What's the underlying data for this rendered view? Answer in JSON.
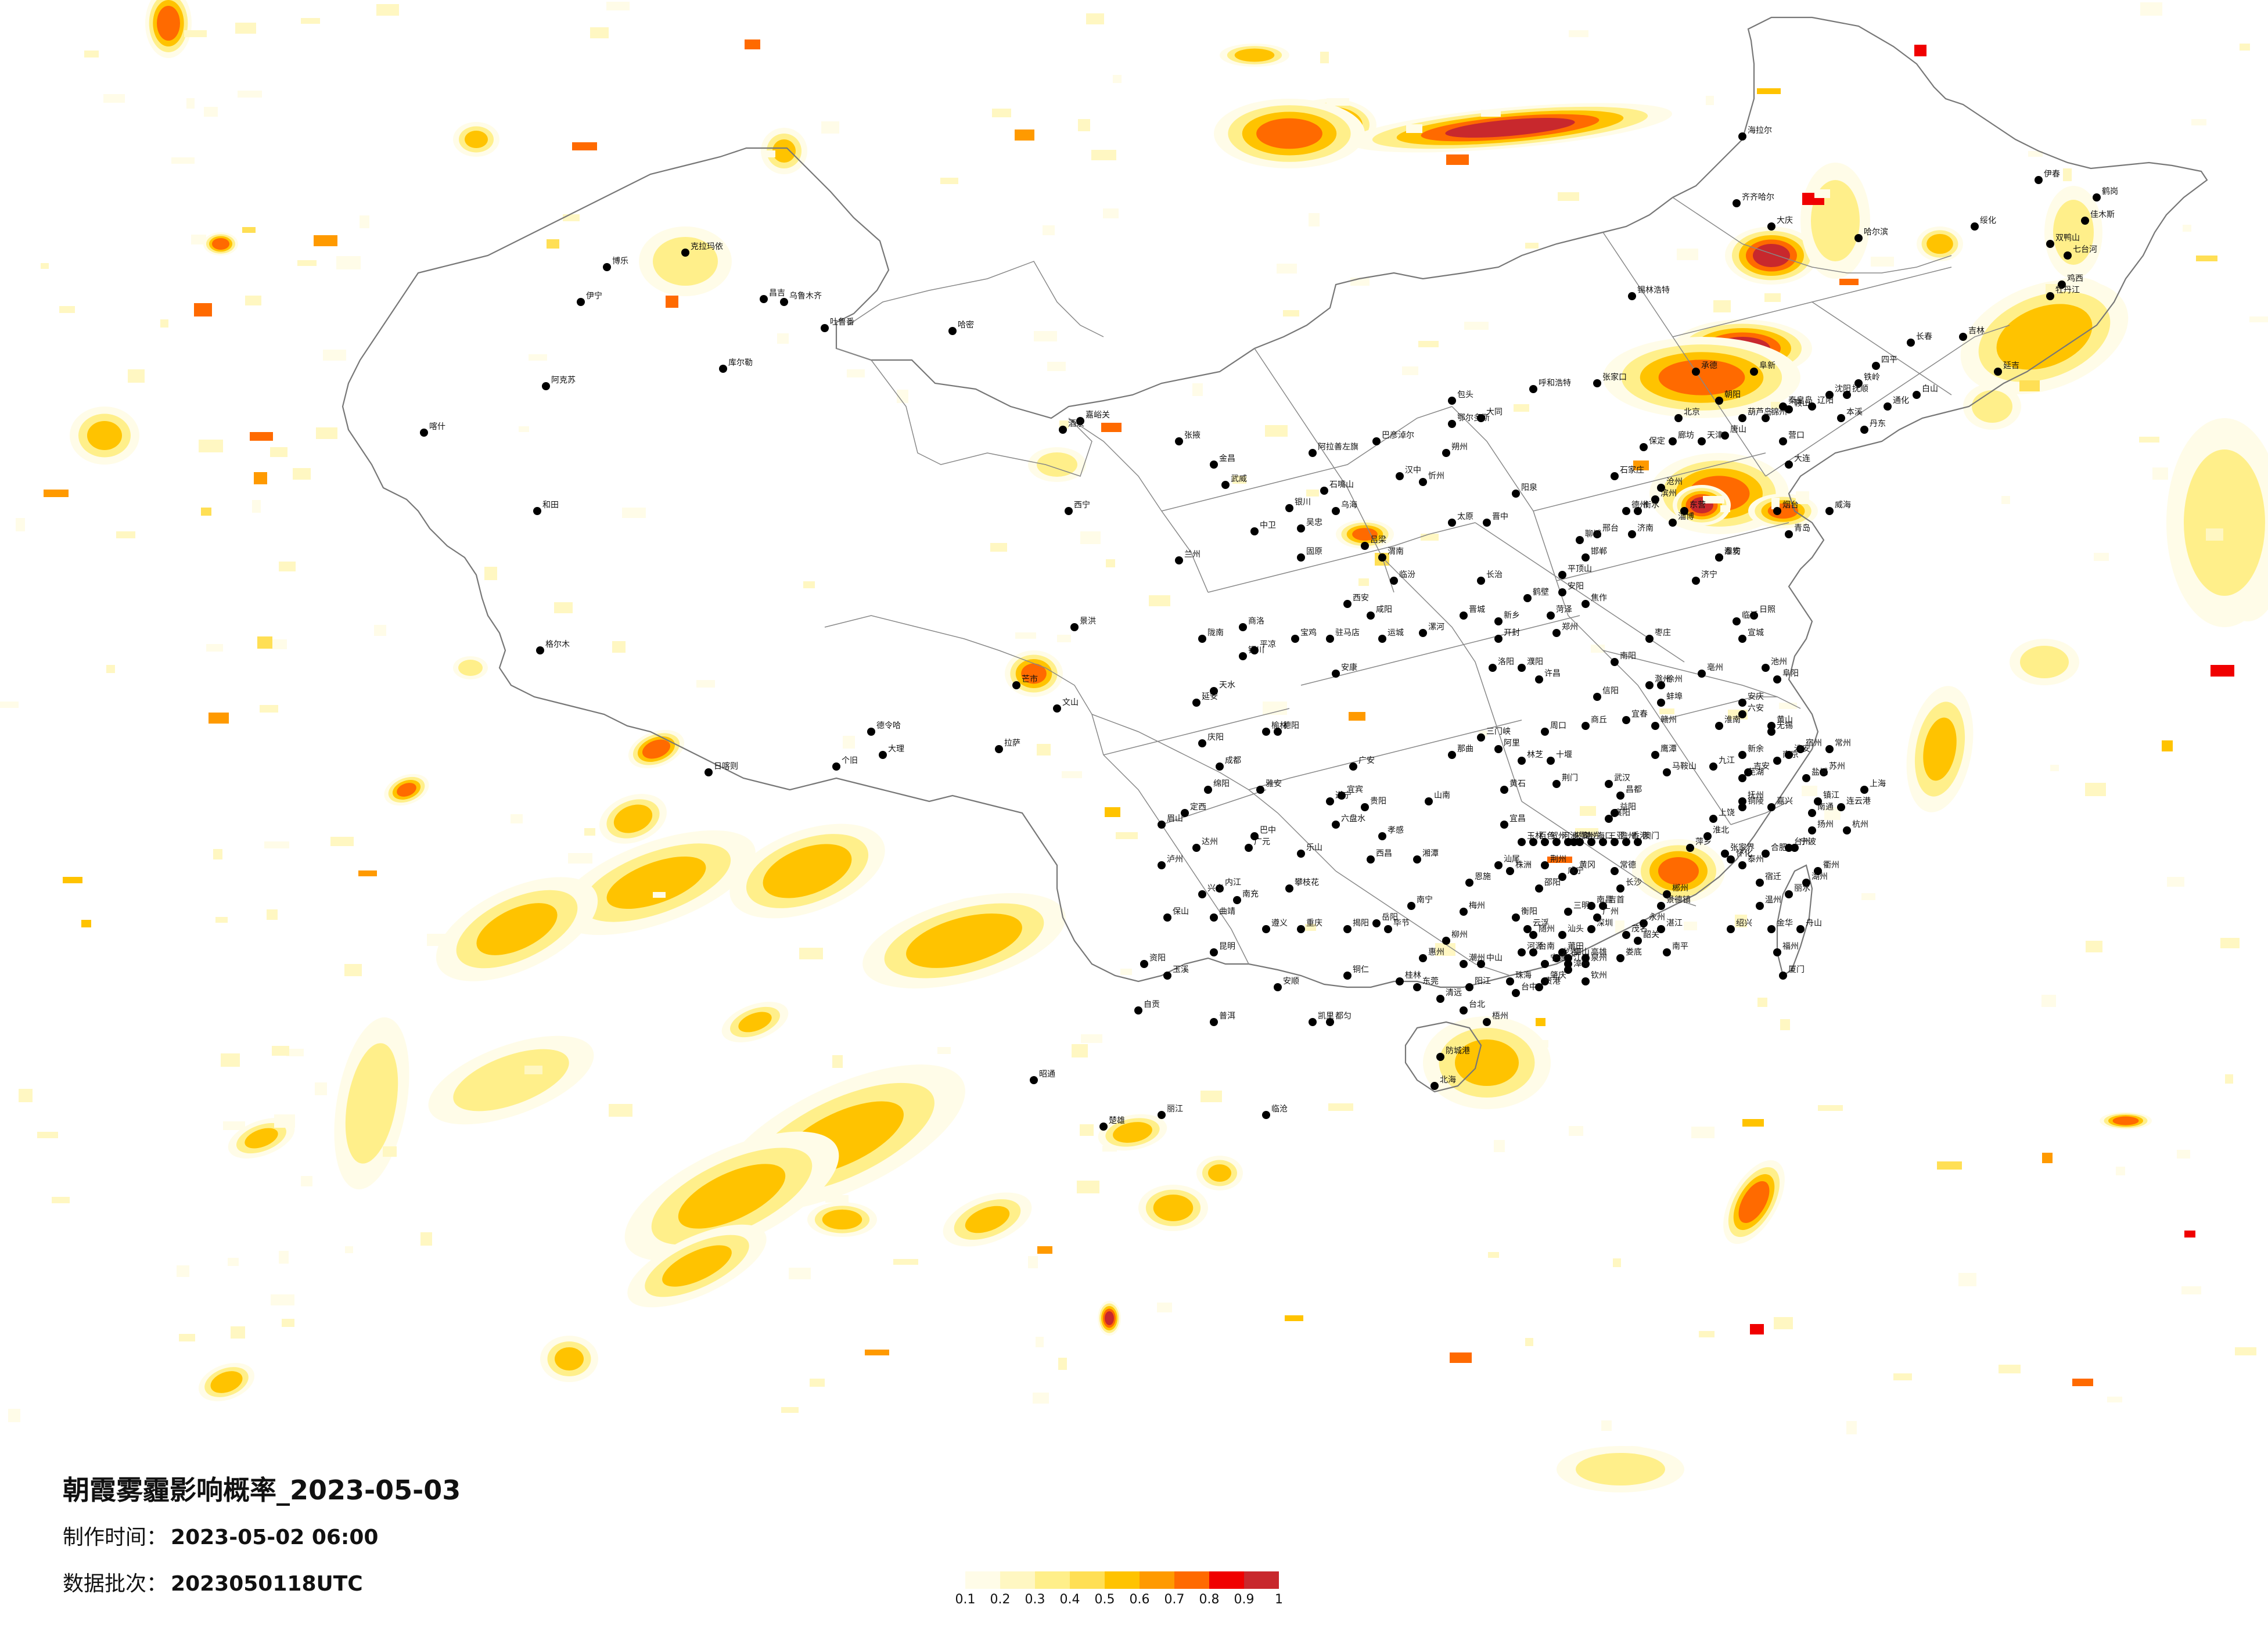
{
  "map": {
    "title": "朝霞雾霾影响概率_2023-05-03",
    "meta": [
      {
        "key": "制作时间：",
        "value": "2023-05-02 06:00"
      },
      {
        "key": "数据批次：",
        "value": "2023050118UTC"
      }
    ],
    "legend": {
      "colors": [
        "#fffce8",
        "#fff7c2",
        "#ffef8a",
        "#ffdf55",
        "#ffc300",
        "#ff9a00",
        "#ff6a00",
        "#f00000",
        "#c8282d"
      ],
      "ticks": [
        "0.1",
        "0.2",
        "0.3",
        "0.4",
        "0.5",
        "0.6",
        "0.7",
        "0.8",
        "0.9",
        "1"
      ]
    },
    "cities": [
      "乌鲁木齐",
      "昌吉",
      "吐鲁番",
      "哈密",
      "克拉玛依",
      "博乐",
      "伊宁",
      "库尔勒",
      "阿克苏",
      "喀什",
      "和田",
      "嘉峪关",
      "酒泉",
      "张掖",
      "金昌",
      "武威",
      "兰州",
      "西宁",
      "格尔木",
      "德令哈",
      "银川",
      "石嘴山",
      "中卫",
      "吴忠",
      "固原",
      "呼和浩特",
      "包头",
      "鄂尔多斯",
      "乌海",
      "巴彦淖尔",
      "阿拉善左旗",
      "锡林浩特",
      "海拉尔",
      "齐齐哈尔",
      "大庆",
      "哈尔滨",
      "伊春",
      "鹤岗",
      "佳木斯",
      "双鸭山",
      "七台河",
      "鸡西",
      "牡丹江",
      "绥化",
      "长春",
      "吉林",
      "四平",
      "通化",
      "白山",
      "延吉",
      "沈阳",
      "大连",
      "鞍山",
      "抚顺",
      "本溪",
      "丹东",
      "锦州",
      "营口",
      "阜新",
      "辽阳",
      "铁岭",
      "朝阳",
      "葫芦岛",
      "北京",
      "天津",
      "石家庄",
      "唐山",
      "秦皇岛",
      "邯郸",
      "邢台",
      "保定",
      "张家口",
      "承德",
      "沧州",
      "廊坊",
      "衡水",
      "太原",
      "大同",
      "阳泉",
      "长治",
      "晋城",
      "朔州",
      "晋中",
      "运城",
      "忻州",
      "临汾",
      "吕梁",
      "济南",
      "青岛",
      "淄博",
      "枣庄",
      "东营",
      "烟台",
      "潍坊",
      "济宁",
      "泰安",
      "威海",
      "日照",
      "临沂",
      "德州",
      "聊城",
      "滨州",
      "菏泽",
      "郑州",
      "开封",
      "洛阳",
      "平顶山",
      "安阳",
      "鹤壁",
      "新乡",
      "焦作",
      "濮阳",
      "许昌",
      "漯河",
      "三门峡",
      "南阳",
      "商丘",
      "信阳",
      "周口",
      "驻马店",
      "西安",
      "铜川",
      "宝鸡",
      "咸阳",
      "渭南",
      "延安",
      "汉中",
      "榆林",
      "安康",
      "商洛",
      "天水",
      "平凉",
      "庆阳",
      "陇南",
      "定西",
      "成都",
      "绵阳",
      "德阳",
      "广元",
      "遂宁",
      "内江",
      "乐山",
      "南充",
      "宜宾",
      "广安",
      "达州",
      "眉山",
      "雅安",
      "巴中",
      "资阳",
      "攀枝花",
      "泸州",
      "自贡",
      "西昌",
      "重庆",
      "贵阳",
      "遵义",
      "安顺",
      "六盘水",
      "毕节",
      "铜仁",
      "凯里",
      "都匀",
      "兴义",
      "昆明",
      "曲靖",
      "玉溪",
      "保山",
      "昭通",
      "丽江",
      "普洱",
      "临沧",
      "楚雄",
      "大理",
      "个旧",
      "文山",
      "景洪",
      "芒市",
      "拉萨",
      "日喀则",
      "林芝",
      "昌都",
      "那曲",
      "山南",
      "阿里",
      "武汉",
      "黄石",
      "十堰",
      "宜昌",
      "襄阳",
      "鄂州",
      "荆门",
      "孝感",
      "荆州",
      "黄冈",
      "咸宁",
      "随州",
      "恩施",
      "长沙",
      "株洲",
      "湘潭",
      "衡阳",
      "邵阳",
      "岳阳",
      "常德",
      "张家界",
      "益阳",
      "郴州",
      "永州",
      "怀化",
      "娄底",
      "吉首",
      "南昌",
      "景德镇",
      "萍乡",
      "九江",
      "新余",
      "鹰潭",
      "赣州",
      "吉安",
      "宜春",
      "抚州",
      "上饶",
      "合肥",
      "芜湖",
      "蚌埠",
      "淮南",
      "马鞍山",
      "淮北",
      "铜陵",
      "安庆",
      "黄山",
      "滁州",
      "阜阳",
      "宿州",
      "六安",
      "亳州",
      "池州",
      "宣城",
      "南京",
      "无锡",
      "徐州",
      "常州",
      "苏州",
      "南通",
      "连云港",
      "淮安",
      "盐城",
      "扬州",
      "镇江",
      "泰州",
      "宿迁",
      "上海",
      "杭州",
      "宁波",
      "温州",
      "嘉兴",
      "湖州",
      "绍兴",
      "金华",
      "衢州",
      "舟山",
      "台州",
      "丽水",
      "福州",
      "厦门",
      "莆田",
      "三明",
      "泉州",
      "漳州",
      "南平",
      "龙岩",
      "宁德",
      "台北",
      "台中",
      "台南",
      "高雄",
      "广州",
      "韶关",
      "深圳",
      "珠海",
      "汕头",
      "佛山",
      "江门",
      "湛江",
      "茂名",
      "肇庆",
      "惠州",
      "梅州",
      "汕尾",
      "河源",
      "阳江",
      "清远",
      "东莞",
      "中山",
      "潮州",
      "揭阳",
      "云浮",
      "南宁",
      "柳州",
      "桂林",
      "梧州",
      "北海",
      "防城港",
      "钦州",
      "贵港",
      "玉林",
      "百色",
      "贺州",
      "河池",
      "来宾",
      "崇左",
      "海口",
      "三亚",
      "儋州",
      "香港",
      "澳门"
    ]
  }
}
